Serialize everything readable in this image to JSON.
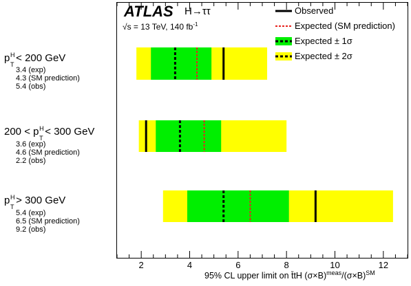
{
  "header": {
    "experiment": "ATLAS",
    "channel": "H→ττ",
    "energy_prefix": "√s = 13 TeV, 140 fb",
    "energy_exponent": "-1"
  },
  "legend": {
    "observed": "Observed",
    "expected": "Expected (SM prediction)",
    "one_sigma": "Expected ± 1σ",
    "two_sigma": "Expected ± 2σ"
  },
  "axis": {
    "xlabel_main": "95% CL upper limit on t̄tH (σ×B)",
    "xlabel_sup1": "meas",
    "xlabel_mid": "/(σ×B)",
    "xlabel_sup2": "SM"
  },
  "rows": [
    {
      "label_p": "p",
      "label_sup": "H",
      "label_sub": "T",
      "label_pre": "",
      "label_post": " < 200 GeV",
      "exp_text": "3.4 (exp)",
      "sm_text": "4.3 (SM prediction)",
      "obs_text": "5.4 (obs)"
    },
    {
      "label_p": "p",
      "label_sup": "H",
      "label_sub": "T",
      "label_pre": "200 < ",
      "label_post": " < 300 GeV",
      "exp_text": "3.6 (exp)",
      "sm_text": "4.6 (SM prediction)",
      "obs_text": "2.2 (obs)"
    },
    {
      "label_p": "p",
      "label_sup": "H",
      "label_sub": "T",
      "label_pre": "",
      "label_post": " > 300 GeV",
      "exp_text": "5.4 (exp)",
      "sm_text": "6.5 (SM prediction)",
      "obs_text": "9.2 (obs)"
    }
  ],
  "colors": {
    "observed": "#000000",
    "expected_sm": "#e8211d",
    "one_sigma": "#00ef00",
    "two_sigma": "#ffff00"
  },
  "chart_data": {
    "type": "bar",
    "xlim": [
      1.0,
      13.0
    ],
    "xticks": [
      2,
      4,
      6,
      8,
      10,
      12
    ],
    "categories": [
      "p_T^H < 200 GeV",
      "200 < p_T^H < 300 GeV",
      "p_T^H > 300 GeV"
    ],
    "expected": [
      3.4,
      3.6,
      5.4
    ],
    "expected_sm": [
      4.3,
      4.6,
      6.5
    ],
    "observed": [
      5.4,
      2.2,
      9.2
    ],
    "band_1sigma": [
      [
        2.4,
        4.9
      ],
      [
        2.6,
        5.3
      ],
      [
        3.9,
        8.1
      ]
    ],
    "band_2sigma": [
      [
        1.8,
        7.2
      ],
      [
        1.9,
        8.0
      ],
      [
        2.9,
        12.4
      ]
    ],
    "grid": false
  }
}
